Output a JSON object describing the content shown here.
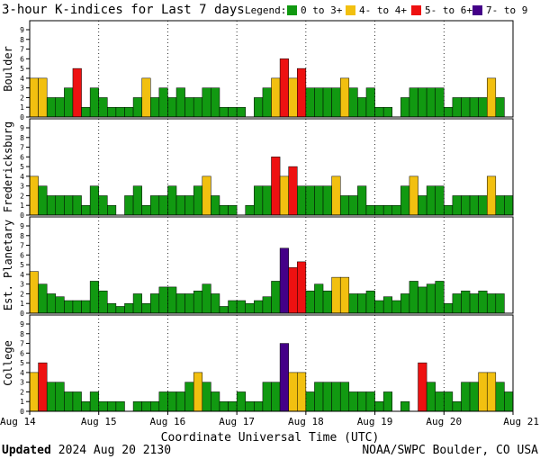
{
  "chart_data": {
    "type": "bar",
    "title": "3-hour K-indices for Last 7 days",
    "legend": {
      "label": "Legend:",
      "items": [
        {
          "label": "0 to 3+",
          "color": "#119911"
        },
        {
          "label": "4- to 4+",
          "color": "#f2c010"
        },
        {
          "label": "5- to 6+",
          "color": "#ee1111"
        },
        {
          "label": "7- to 9",
          "color": "#440088"
        }
      ]
    },
    "xlabel": "Coordinate Universal Time (UTC)",
    "x_ticks": [
      "Aug 14",
      "Aug 15",
      "Aug 16",
      "Aug 17",
      "Aug 18",
      "Aug 19",
      "Aug 20",
      "Aug 21"
    ],
    "ylim": [
      0,
      9
    ],
    "y_ticks": [
      "0",
      "1",
      "2",
      "3",
      "4",
      "5",
      "6",
      "7",
      "8",
      "9"
    ],
    "bars_per_day": 8,
    "grid": true,
    "series": [
      {
        "name": "Boulder",
        "values": [
          4,
          4,
          2,
          2,
          3,
          5,
          1,
          3,
          2,
          1,
          1,
          1,
          2,
          4,
          2,
          3,
          2,
          3,
          2,
          2,
          3,
          3,
          1,
          1,
          1,
          0,
          2,
          3,
          4,
          6,
          4,
          5,
          3,
          3,
          3,
          3,
          4,
          3,
          2,
          3,
          1,
          1,
          0,
          2,
          3,
          3,
          3,
          3,
          1,
          2,
          2,
          2,
          2,
          4,
          2,
          0
        ]
      },
      {
        "name": "Fredericksburg",
        "values": [
          4,
          3,
          2,
          2,
          2,
          2,
          1,
          3,
          2,
          1,
          0,
          2,
          3,
          1,
          2,
          2,
          3,
          2,
          2,
          3,
          4,
          2,
          1,
          1,
          0,
          1,
          3,
          3,
          6,
          4,
          5,
          3,
          3,
          3,
          3,
          4,
          2,
          2,
          3,
          1,
          1,
          1,
          1,
          3,
          4,
          2,
          3,
          3,
          1,
          2,
          2,
          2,
          2,
          4,
          2,
          2,
          0
        ]
      },
      {
        "name": "Est. Planetary",
        "values": [
          4.3,
          3,
          2,
          1.7,
          1.3,
          1.3,
          1.3,
          3.3,
          2.3,
          1,
          0.7,
          1,
          2,
          1,
          2,
          2.7,
          2.7,
          2,
          2,
          2.3,
          3,
          2,
          0.7,
          1.3,
          1.3,
          1,
          1.3,
          1.7,
          3.3,
          6.7,
          4.7,
          5.3,
          2.3,
          3,
          2.3,
          3.7,
          3.7,
          2,
          2,
          2.3,
          1.3,
          1.7,
          1.3,
          2,
          3.3,
          2.7,
          3,
          3.3,
          1,
          2,
          2.3,
          2,
          2.3,
          2,
          2
        ]
      },
      {
        "name": "College",
        "values": [
          4,
          5,
          3,
          3,
          2,
          2,
          1,
          2,
          1,
          1,
          1,
          0,
          1,
          1,
          1,
          2,
          2,
          2,
          3,
          4,
          3,
          2,
          1,
          1,
          2,
          1,
          1,
          3,
          3,
          7,
          4,
          4,
          2,
          3,
          3,
          3,
          3,
          2,
          2,
          2,
          1,
          2,
          0,
          1,
          0,
          5,
          3,
          2,
          2,
          1,
          3,
          3,
          4,
          4,
          3,
          2,
          0
        ]
      }
    ]
  },
  "footer": {
    "updated_label": "Updated",
    "updated_value": "2024 Aug 20 2130",
    "source": "NOAA/SWPC Boulder, CO USA"
  }
}
